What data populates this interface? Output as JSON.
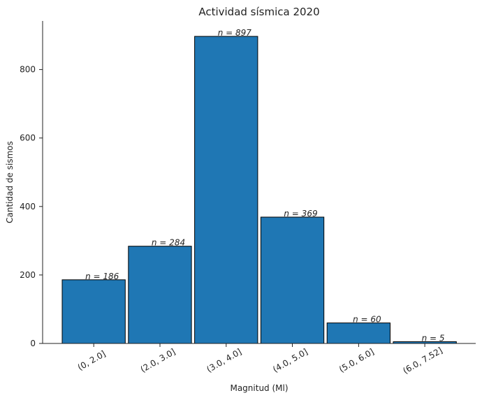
{
  "chart_data": {
    "type": "bar",
    "title": "Actividad sísmica 2020",
    "xlabel": "Magnitud (Ml)",
    "ylabel": "Cantidad de sismos",
    "categories": [
      "(0, 2.0]",
      "(2.0, 3.0]",
      "(3.0, 4.0]",
      "(4.0, 5.0]",
      "(5.0, 6.0]",
      "(6.0, 7.52]"
    ],
    "values": [
      186,
      284,
      897,
      369,
      60,
      5
    ],
    "data_labels": [
      "n = 186",
      "n = 284",
      "n = 897",
      "n = 369",
      "n = 60",
      "n = 5"
    ],
    "ylim": [
      0,
      942
    ],
    "yticks": [
      0,
      200,
      400,
      600,
      800
    ],
    "grid": false,
    "bar_color": "#1f77b4",
    "edge_color": "#000000"
  }
}
